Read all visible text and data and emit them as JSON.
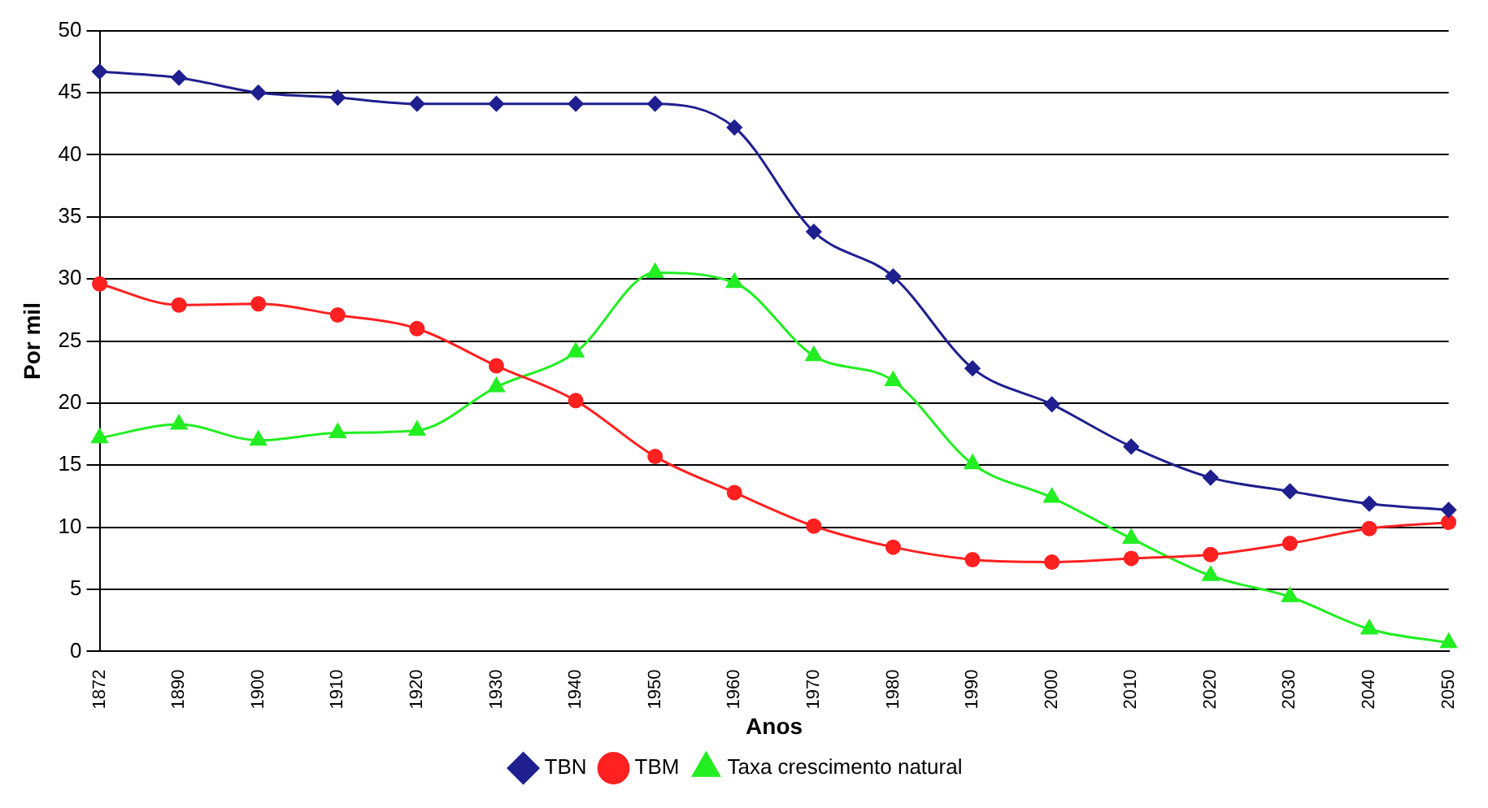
{
  "chart_data": {
    "type": "line",
    "xlabel": "Anos",
    "ylabel": "Por mil",
    "categories": [
      "1872",
      "1890",
      "1900",
      "1910",
      "1920",
      "1930",
      "1940",
      "1950",
      "1960",
      "1970",
      "1980",
      "1990",
      "2000",
      "2010",
      "2020",
      "2030",
      "2040",
      "2050"
    ],
    "series": [
      {
        "name": "TBN",
        "color": "#1f1f8f",
        "marker": "diamond",
        "values": [
          46.7,
          46.2,
          45,
          44.6,
          44.1,
          44.1,
          44.1,
          44.1,
          42.2,
          33.8,
          30.2,
          22.8,
          19.9,
          16.5,
          14,
          12.9,
          11.9,
          11.4
        ]
      },
      {
        "name": "TBM",
        "color": "#ff2020",
        "marker": "circle",
        "values": [
          29.6,
          27.9,
          28,
          27.1,
          26,
          23,
          20.2,
          15.7,
          12.8,
          10.1,
          8.4,
          7.4,
          7.2,
          7.5,
          7.8,
          8.7,
          9.9,
          10.4
        ]
      },
      {
        "name": "Taxa crescimento natural",
        "color": "#22ee22",
        "marker": "triangle",
        "values": [
          17.2,
          18.3,
          17,
          17.6,
          17.8,
          21.3,
          24.1,
          30.5,
          29.7,
          23.8,
          21.8,
          15.1,
          12.4,
          9.1,
          6.1,
          4.4,
          1.8,
          0.7
        ]
      }
    ],
    "ylim": [
      0,
      50
    ],
    "yticks": [
      0,
      5,
      10,
      15,
      20,
      25,
      30,
      35,
      40,
      45,
      50
    ],
    "grid": "y",
    "legend": "bottom"
  }
}
